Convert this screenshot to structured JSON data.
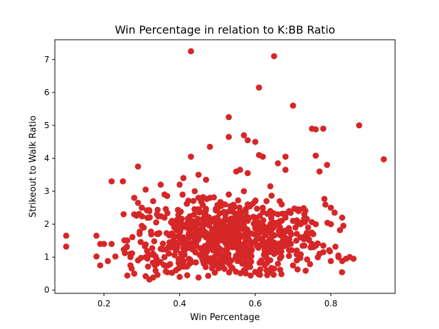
{
  "chart_data": {
    "type": "scatter",
    "title": "Win Percentage in relation to K:BB Ratio",
    "xlabel": "Win Percentage",
    "ylabel": "Strikeout to Walk Ratio",
    "xlim": [
      0.07,
      0.97
    ],
    "ylim": [
      -0.1,
      7.6
    ],
    "xticks": [
      0.2,
      0.4,
      0.6,
      0.8
    ],
    "xtick_labels": [
      "0.2",
      "0.4",
      "0.6",
      "0.8"
    ],
    "yticks": [
      0,
      1,
      2,
      3,
      4,
      5,
      6,
      7
    ],
    "ytick_labels": [
      "0",
      "1",
      "2",
      "3",
      "4",
      "5",
      "6",
      "7"
    ],
    "grid": false,
    "legend": "none",
    "marker_color": "#d62728",
    "series": [
      {
        "x": [
          0.43,
          0.65,
          0.61,
          0.7,
          0.875,
          0.94,
          0.53,
          0.75,
          0.76,
          0.78,
          0.53,
          0.57,
          0.58,
          0.6,
          0.61,
          0.48,
          0.43,
          0.29,
          0.25,
          0.22,
          0.1,
          0.1,
          0.18,
          0.19,
          0.2,
          0.18,
          0.19,
          0.21,
          0.22,
          0.23,
          0.26,
          0.27,
          0.27,
          0.28,
          0.29,
          0.3,
          0.31,
          0.32,
          0.33,
          0.34,
          0.28,
          0.29,
          0.31,
          0.32,
          0.35,
          0.41,
          0.45,
          0.47,
          0.55,
          0.56,
          0.58,
          0.62,
          0.64,
          0.66,
          0.68,
          0.68,
          0.76,
          0.77,
          0.79,
          0.8,
          0.81,
          0.83,
          0.8,
          0.76,
          0.74,
          0.78,
          0.84,
          0.85,
          0.86,
          0.82,
          0.83,
          0.8,
          0.71,
          0.7,
          0.66,
          0.65,
          0.63,
          0.6,
          0.57,
          0.45,
          0.42,
          0.4,
          0.39,
          0.37,
          0.35,
          0.47,
          0.52,
          0.54,
          0.56,
          0.5,
          0.48,
          0.46,
          0.44,
          0.42,
          0.4,
          0.38,
          0.36,
          0.34,
          0.32,
          0.3,
          0.58,
          0.6,
          0.62,
          0.64,
          0.66,
          0.68,
          0.7,
          0.72,
          0.74,
          0.59,
          0.55,
          0.51,
          0.49,
          0.44,
          0.41,
          0.37,
          0.33,
          0.31,
          0.45,
          0.53,
          0.57,
          0.63,
          0.67,
          0.69,
          0.73,
          0.61,
          0.54,
          0.47,
          0.43,
          0.39,
          0.36,
          0.5,
          0.52,
          0.56,
          0.58,
          0.62,
          0.65,
          0.71,
          0.75,
          0.77,
          0.72,
          0.68,
          0.64,
          0.6,
          0.56,
          0.52,
          0.48,
          0.44,
          0.4,
          0.36,
          0.33,
          0.3,
          0.28,
          0.27,
          0.35,
          0.38,
          0.41,
          0.46,
          0.51,
          0.55,
          0.59,
          0.63,
          0.67,
          0.69,
          0.73,
          0.78,
          0.82
        ],
        "y": [
          7.25,
          7.1,
          6.15,
          5.6,
          5.0,
          3.97,
          5.25,
          4.9,
          4.88,
          4.9,
          4.65,
          4.7,
          4.55,
          4.5,
          4.1,
          4.35,
          4.05,
          3.75,
          3.3,
          3.3,
          1.65,
          1.32,
          1.65,
          1.4,
          1.4,
          1.02,
          0.75,
          0.88,
          1.4,
          1.02,
          1.3,
          1.1,
          0.75,
          0.5,
          0.9,
          1.95,
          0.42,
          0.32,
          0.38,
          0.8,
          2.8,
          2.65,
          3.05,
          2.2,
          3.2,
          3.4,
          3.5,
          3.35,
          3.6,
          3.65,
          3.55,
          4.05,
          3.15,
          3.85,
          4.05,
          3.65,
          4.08,
          3.6,
          3.8,
          2.5,
          2.35,
          2.2,
          2.0,
          2.0,
          1.7,
          1.35,
          0.95,
          1.0,
          0.95,
          1.05,
          0.88,
          0.88,
          0.9,
          0.75,
          0.8,
          0.65,
          0.6,
          0.55,
          0.6,
          0.38,
          0.45,
          0.4,
          0.6,
          0.75,
          0.85,
          1.2,
          1.1,
          1.3,
          1.4,
          1.5,
          1.6,
          1.7,
          1.8,
          1.9,
          2.0,
          2.1,
          2.2,
          2.3,
          2.4,
          2.5,
          2.6,
          2.7,
          2.5,
          2.4,
          2.3,
          2.2,
          2.1,
          2.0,
          1.9,
          1.2,
          1.0,
          0.9,
          0.8,
          1.5,
          1.6,
          1.3,
          1.1,
          1.0,
          2.8,
          2.9,
          3.0,
          2.7,
          2.6,
          2.4,
          2.3,
          2.0,
          1.8,
          1.6,
          1.4,
          1.2,
          1.0,
          2.2,
          1.7,
          1.9,
          2.1,
          1.5,
          1.3,
          1.2,
          1.4,
          1.1,
          1.6,
          1.8,
          2.0,
          2.2,
          2.4,
          2.6,
          2.8,
          3.0,
          3.2,
          2.9,
          2.7,
          2.5,
          2.3,
          1.0,
          1.25,
          1.45,
          1.35,
          1.15,
          0.95,
          1.05,
          1.25,
          1.45,
          1.65,
          1.55,
          1.35,
          1.15,
          1.0
        ],
        "cluster_note": ""
      }
    ]
  }
}
